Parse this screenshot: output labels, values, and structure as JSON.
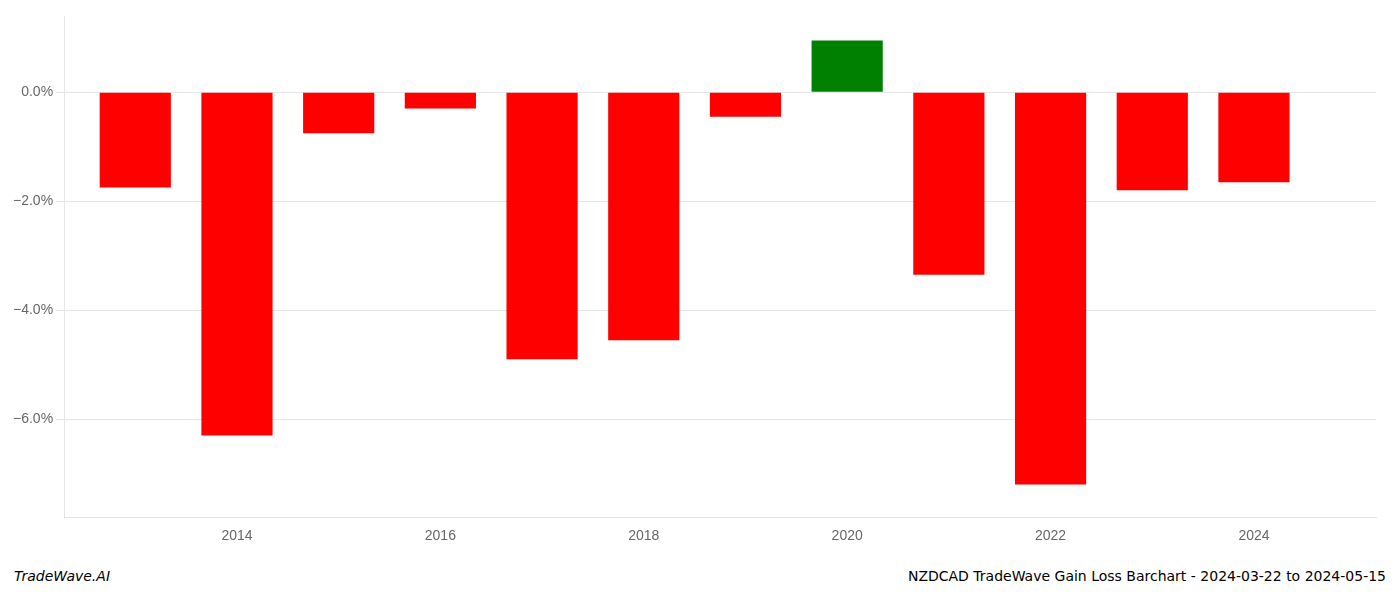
{
  "chart_data": {
    "type": "bar",
    "title": "NZDCAD TradeWave Gain Loss Barchart - 2024-03-22 to 2024-05-15",
    "annotations": [
      "TradeWave.AI"
    ],
    "x": [
      2013,
      2014,
      2015,
      2016,
      2017,
      2018,
      2019,
      2020,
      2021,
      2022,
      2023,
      2024
    ],
    "values": [
      -1.75,
      -6.3,
      -0.75,
      -0.3,
      -4.9,
      -4.55,
      -0.45,
      0.95,
      -3.35,
      -7.2,
      -1.8,
      -1.65
    ],
    "colors": [
      "#ff0000",
      "#ff0000",
      "#ff0000",
      "#ff0000",
      "#ff0000",
      "#ff0000",
      "#ff0000",
      "#008000",
      "#ff0000",
      "#ff0000",
      "#ff0000",
      "#ff0000"
    ],
    "xlim": [
      2012.3,
      2025.2
    ],
    "ylim": [
      -7.8,
      1.4
    ],
    "xticks": [
      2014,
      2016,
      2018,
      2020,
      2022,
      2024
    ],
    "yticks": [
      {
        "value": 0.0,
        "label": "0.0%"
      },
      {
        "value": -2.0,
        "label": "−2.0%"
      },
      {
        "value": -4.0,
        "label": "−4.0%"
      },
      {
        "value": -6.0,
        "label": "−6.0%"
      }
    ],
    "grid": "y"
  }
}
